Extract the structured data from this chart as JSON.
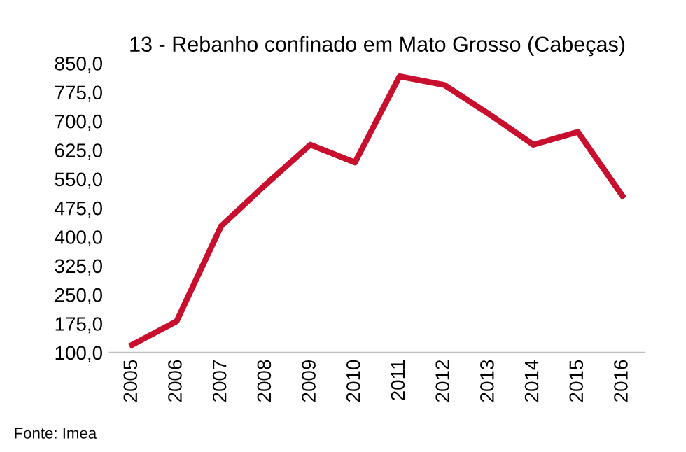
{
  "chart_data": {
    "type": "line",
    "title": "13 - Rebanho confinado em Mato Grosso (Cabeças)",
    "categories": [
      "2005",
      "2006",
      "2007",
      "2008",
      "2009",
      "2010",
      "2011",
      "2012",
      "2013",
      "2014",
      "2015",
      "2016"
    ],
    "series": [
      {
        "color": "#c8102e",
        "values": [
          120,
          181,
          428,
          536,
          639,
          593,
          816,
          794,
          719,
          639,
          672,
          506
        ]
      }
    ],
    "ylim": [
      100,
      850
    ],
    "yticks": [
      {
        "value": 100,
        "label": "100,0"
      },
      {
        "value": 175,
        "label": "175,0"
      },
      {
        "value": 250,
        "label": "250,0"
      },
      {
        "value": 325,
        "label": "325,0"
      },
      {
        "value": 400,
        "label": "400,0"
      },
      {
        "value": 475,
        "label": "475,0"
      },
      {
        "value": 550,
        "label": "550,0"
      },
      {
        "value": 625,
        "label": "625,0"
      },
      {
        "value": 700,
        "label": "700,0"
      },
      {
        "value": 775,
        "label": "775,0"
      },
      {
        "value": 850,
        "label": "850,0"
      }
    ],
    "annotations": [
      "Fonte: Imea"
    ],
    "grid": false,
    "legend": false,
    "marker": "none",
    "line_style": "solid"
  }
}
